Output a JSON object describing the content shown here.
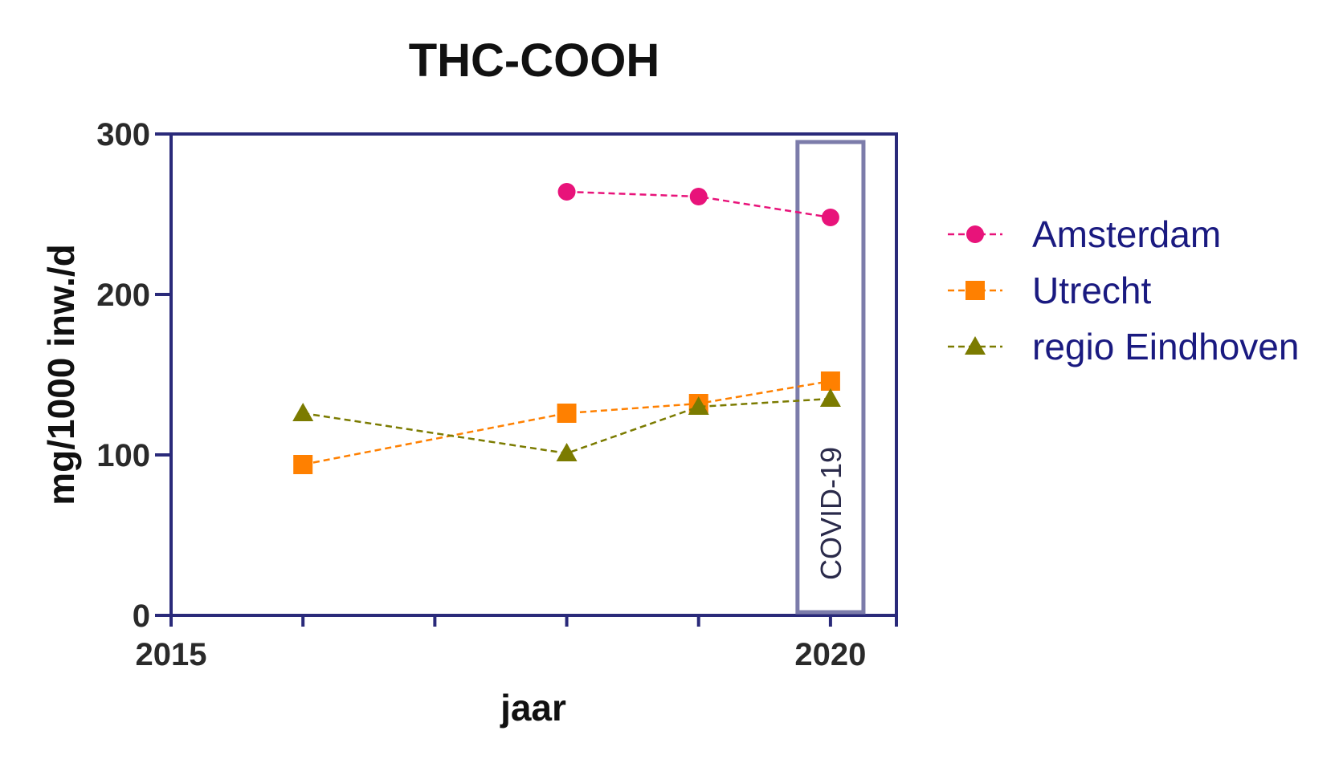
{
  "chart_data": {
    "type": "line",
    "title": "THC-COOH",
    "xlabel": "jaar",
    "ylabel": "mg/1000 inw./d",
    "xlim": [
      2015,
      2020.5
    ],
    "ylim": [
      0,
      300
    ],
    "x_tick_labels": [
      "2015",
      "2020"
    ],
    "y_tick_labels": [
      "0",
      "100",
      "200",
      "300"
    ],
    "grid": false,
    "legend_position": "right",
    "series": [
      {
        "name": "Amsterdam",
        "color": "#e8137a",
        "marker": "circle",
        "x": [
          2018,
          2019,
          2020
        ],
        "values": [
          264,
          261,
          248
        ]
      },
      {
        "name": "Utrecht",
        "color": "#ff8000",
        "marker": "square",
        "x": [
          2016,
          2018,
          2019,
          2020
        ],
        "values": [
          94,
          126,
          132,
          146
        ]
      },
      {
        "name": "regio Eindhoven",
        "color": "#7b7b00",
        "marker": "triangle",
        "x": [
          2016,
          2018,
          2019,
          2020
        ],
        "values": [
          126,
          101,
          130,
          135
        ]
      }
    ],
    "annotation": {
      "label": "COVID-19",
      "color": "#7c7caa"
    }
  }
}
